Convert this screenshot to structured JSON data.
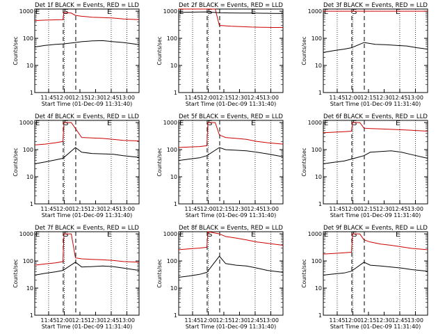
{
  "chart_data": {
    "type": "line",
    "x_ticks": [
      "11:45",
      "12:00",
      "12:15",
      "12:30",
      "12:45",
      "13:00"
    ],
    "y_ticks": [
      "1",
      "10",
      "100",
      "1000"
    ],
    "y_scale": "log",
    "ylim": [
      1,
      1200
    ],
    "xlim_minutes": [
      0,
      100
    ],
    "ylabel": "Counts/sec",
    "xlabel": "Start Time (01-Dec-09 11:31:40)",
    "flag_letters": {
      "E_left": "E",
      "S": "S",
      "E_right": "E"
    },
    "dotted_lines_min": [
      13.3,
      28.3,
      73.3,
      88.3
    ],
    "dashed_lines_min": [
      27.3,
      39.3
    ],
    "series_colors": {
      "events": "#000000",
      "lld": "#cc0000"
    },
    "panels": [
      {
        "title": "Det 1f BLACK = Events, RED = LLD",
        "events": [
          [
            0,
            48
          ],
          [
            10,
            55
          ],
          [
            20,
            60
          ],
          [
            27,
            62
          ],
          [
            39,
            70
          ],
          [
            45,
            75
          ],
          [
            55,
            80
          ],
          [
            65,
            82
          ],
          [
            75,
            75
          ],
          [
            85,
            70
          ],
          [
            95,
            62
          ],
          [
            100,
            58
          ]
        ],
        "lld": [
          [
            0,
            450
          ],
          [
            10,
            470
          ],
          [
            20,
            480
          ],
          [
            27,
            490
          ],
          [
            28,
            900
          ],
          [
            35,
            850
          ],
          [
            39,
            700
          ],
          [
            45,
            650
          ],
          [
            55,
            600
          ],
          [
            65,
            580
          ],
          [
            75,
            560
          ],
          [
            85,
            520
          ],
          [
            100,
            490
          ]
        ]
      },
      {
        "title": "Det 2f BLACK = Events, RED = LLD",
        "events": [
          [
            0,
            900
          ],
          [
            10,
            920
          ],
          [
            20,
            930
          ],
          [
            27,
            940
          ],
          [
            39,
            870
          ],
          [
            50,
            860
          ],
          [
            60,
            850
          ],
          [
            70,
            850
          ],
          [
            80,
            840
          ],
          [
            90,
            830
          ],
          [
            100,
            820
          ]
        ],
        "lld": [
          [
            0,
            1200
          ],
          [
            10,
            1200
          ],
          [
            20,
            1200
          ],
          [
            27,
            1200
          ],
          [
            35,
            1200
          ],
          [
            39,
            300
          ],
          [
            50,
            280
          ],
          [
            60,
            270
          ],
          [
            70,
            260
          ],
          [
            80,
            255
          ],
          [
            90,
            250
          ],
          [
            100,
            250
          ]
        ]
      },
      {
        "title": "Det 3f BLACK = Events, RED = LLD",
        "events": [
          [
            0,
            30
          ],
          [
            10,
            35
          ],
          [
            20,
            40
          ],
          [
            27,
            45
          ],
          [
            39,
            70
          ],
          [
            50,
            60
          ],
          [
            60,
            58
          ],
          [
            70,
            55
          ],
          [
            80,
            52
          ],
          [
            90,
            45
          ],
          [
            100,
            40
          ]
        ],
        "lld": [
          [
            0,
            1000
          ],
          [
            10,
            1000
          ],
          [
            20,
            1000
          ],
          [
            27,
            1000
          ],
          [
            39,
            1000
          ],
          [
            50,
            1000
          ],
          [
            60,
            1000
          ],
          [
            70,
            1000
          ],
          [
            80,
            1000
          ],
          [
            90,
            1000
          ],
          [
            100,
            1000
          ]
        ]
      },
      {
        "title": "Det 4f BLACK = Events, RED = LLD",
        "events": [
          [
            0,
            30
          ],
          [
            10,
            35
          ],
          [
            20,
            42
          ],
          [
            27,
            48
          ],
          [
            39,
            120
          ],
          [
            45,
            80
          ],
          [
            55,
            72
          ],
          [
            65,
            70
          ],
          [
            75,
            68
          ],
          [
            85,
            60
          ],
          [
            100,
            52
          ]
        ],
        "lld": [
          [
            0,
            150
          ],
          [
            10,
            160
          ],
          [
            20,
            180
          ],
          [
            27,
            200
          ],
          [
            28,
            1000
          ],
          [
            35,
            1000
          ],
          [
            39,
            600
          ],
          [
            45,
            280
          ],
          [
            55,
            270
          ],
          [
            65,
            260
          ],
          [
            75,
            240
          ],
          [
            85,
            220
          ],
          [
            100,
            210
          ]
        ]
      },
      {
        "title": "Det 5f BLACK = Events, RED = LLD",
        "events": [
          [
            0,
            40
          ],
          [
            10,
            45
          ],
          [
            20,
            50
          ],
          [
            27,
            60
          ],
          [
            39,
            120
          ],
          [
            45,
            100
          ],
          [
            55,
            95
          ],
          [
            65,
            90
          ],
          [
            75,
            80
          ],
          [
            85,
            70
          ],
          [
            100,
            55
          ]
        ],
        "lld": [
          [
            0,
            120
          ],
          [
            10,
            125
          ],
          [
            20,
            130
          ],
          [
            27,
            140
          ],
          [
            28,
            1000
          ],
          [
            35,
            1000
          ],
          [
            39,
            350
          ],
          [
            45,
            280
          ],
          [
            55,
            260
          ],
          [
            65,
            240
          ],
          [
            75,
            200
          ],
          [
            85,
            180
          ],
          [
            100,
            160
          ]
        ]
      },
      {
        "title": "Det 6f BLACK = Events, RED = LLD",
        "events": [
          [
            0,
            30
          ],
          [
            10,
            34
          ],
          [
            20,
            38
          ],
          [
            27,
            45
          ],
          [
            39,
            60
          ],
          [
            45,
            80
          ],
          [
            55,
            85
          ],
          [
            65,
            90
          ],
          [
            75,
            80
          ],
          [
            85,
            65
          ],
          [
            100,
            48
          ]
        ],
        "lld": [
          [
            0,
            420
          ],
          [
            10,
            440
          ],
          [
            20,
            460
          ],
          [
            27,
            480
          ],
          [
            28,
            1000
          ],
          [
            35,
            1000
          ],
          [
            39,
            620
          ],
          [
            45,
            600
          ],
          [
            55,
            580
          ],
          [
            65,
            560
          ],
          [
            75,
            540
          ],
          [
            85,
            520
          ],
          [
            100,
            480
          ]
        ]
      },
      {
        "title": "Det 7f BLACK = Events, RED = LLD",
        "events": [
          [
            0,
            30
          ],
          [
            10,
            35
          ],
          [
            20,
            40
          ],
          [
            27,
            45
          ],
          [
            39,
            90
          ],
          [
            45,
            60
          ],
          [
            55,
            62
          ],
          [
            65,
            65
          ],
          [
            75,
            62
          ],
          [
            85,
            55
          ],
          [
            100,
            45
          ]
        ],
        "lld": [
          [
            0,
            70
          ],
          [
            10,
            78
          ],
          [
            20,
            85
          ],
          [
            27,
            95
          ],
          [
            28,
            1000
          ],
          [
            35,
            1000
          ],
          [
            39,
            130
          ],
          [
            45,
            120
          ],
          [
            55,
            115
          ],
          [
            65,
            110
          ],
          [
            75,
            105
          ],
          [
            85,
            95
          ],
          [
            100,
            90
          ]
        ]
      },
      {
        "title": "Det 8f BLACK = Events, RED = LLD",
        "events": [
          [
            0,
            25
          ],
          [
            10,
            28
          ],
          [
            20,
            32
          ],
          [
            27,
            38
          ],
          [
            39,
            150
          ],
          [
            45,
            80
          ],
          [
            55,
            70
          ],
          [
            65,
            65
          ],
          [
            75,
            55
          ],
          [
            85,
            45
          ],
          [
            100,
            38
          ]
        ],
        "lld": [
          [
            0,
            260
          ],
          [
            10,
            280
          ],
          [
            20,
            300
          ],
          [
            27,
            320
          ],
          [
            28,
            1200
          ],
          [
            39,
            1000
          ],
          [
            45,
            800
          ],
          [
            55,
            700
          ],
          [
            65,
            600
          ],
          [
            75,
            500
          ],
          [
            85,
            450
          ],
          [
            100,
            380
          ]
        ]
      },
      {
        "title": "Det 9f BLACK = Events, RED = LLD",
        "events": [
          [
            0,
            30
          ],
          [
            10,
            33
          ],
          [
            20,
            36
          ],
          [
            27,
            42
          ],
          [
            39,
            90
          ],
          [
            45,
            70
          ],
          [
            55,
            65
          ],
          [
            65,
            60
          ],
          [
            75,
            55
          ],
          [
            85,
            48
          ],
          [
            100,
            42
          ]
        ],
        "lld": [
          [
            0,
            180
          ],
          [
            10,
            190
          ],
          [
            20,
            200
          ],
          [
            27,
            210
          ],
          [
            28,
            1000
          ],
          [
            35,
            1000
          ],
          [
            39,
            600
          ],
          [
            45,
            500
          ],
          [
            55,
            420
          ],
          [
            65,
            380
          ],
          [
            75,
            330
          ],
          [
            85,
            290
          ],
          [
            100,
            260
          ]
        ]
      }
    ]
  }
}
